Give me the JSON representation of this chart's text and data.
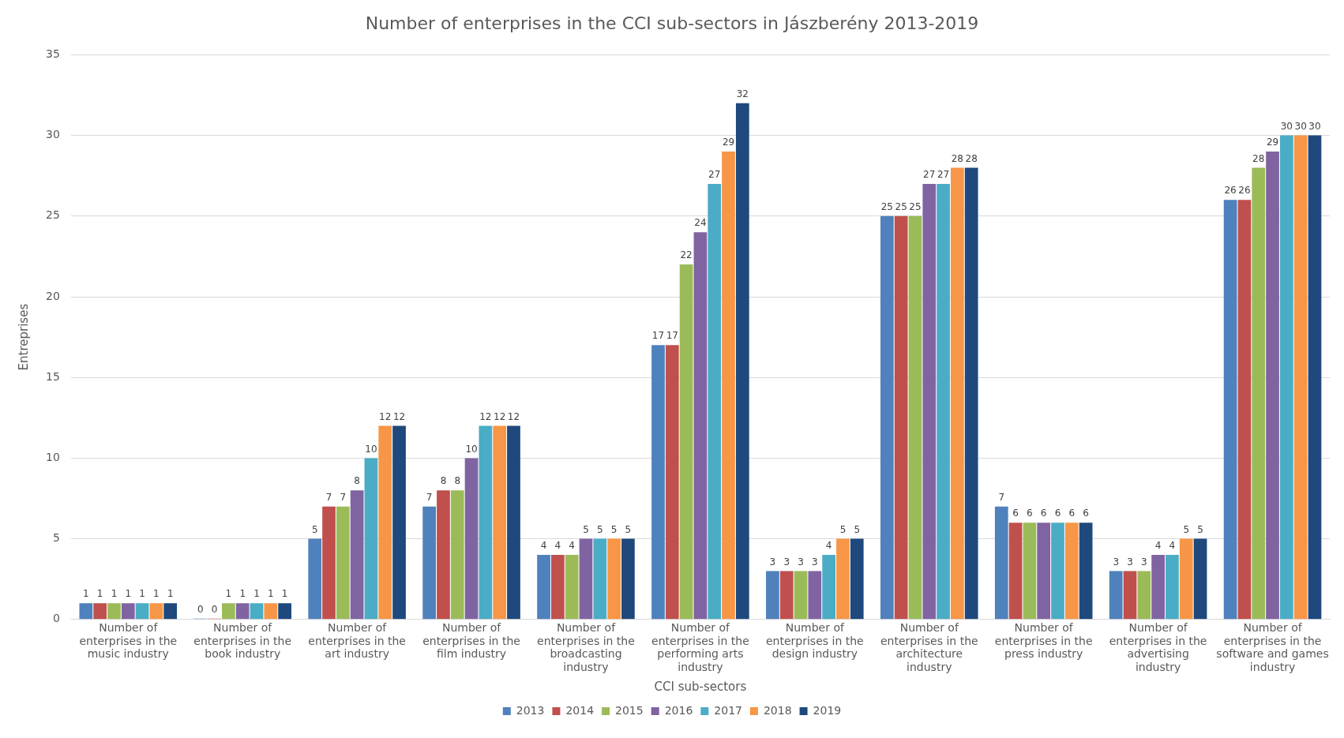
{
  "chart_data": {
    "type": "bar",
    "title": "Number of enterprises in the CCI sub-sectors in Jászberény 2013-2019",
    "xlabel": "CCI sub-sectors",
    "ylabel": "Entreprises",
    "categories": [
      "Number of enterprises in the music industry",
      "Number of enterprises in the book industry",
      "Number of enterprises in the art industry",
      "Number of enterprises in the film industry",
      "Number of enterprises in the broadcasting industry",
      "Number of enterprises in the performing arts industry",
      "Number of enterprises in the design industry",
      "Number of enterprises in the architecture industry",
      "Number of enterprises in the press industry",
      "Number of enterprises in the advertising industry",
      "Number of enterprises in the software and games industry"
    ],
    "series": [
      {
        "name": "2013",
        "color": "#4f81bd",
        "values": [
          1,
          0,
          5,
          7,
          4,
          17,
          3,
          25,
          7,
          3,
          26
        ]
      },
      {
        "name": "2014",
        "color": "#c0504d",
        "values": [
          1,
          0,
          7,
          8,
          4,
          17,
          3,
          25,
          6,
          3,
          26
        ]
      },
      {
        "name": "2015",
        "color": "#9bbb59",
        "values": [
          1,
          1,
          7,
          8,
          4,
          22,
          3,
          25,
          6,
          3,
          28
        ]
      },
      {
        "name": "2016",
        "color": "#8064a2",
        "values": [
          1,
          1,
          8,
          10,
          5,
          24,
          3,
          27,
          6,
          4,
          29
        ]
      },
      {
        "name": "2017",
        "color": "#4bacc6",
        "values": [
          1,
          1,
          10,
          12,
          5,
          27,
          4,
          27,
          6,
          4,
          30
        ]
      },
      {
        "name": "2018",
        "color": "#f79646",
        "values": [
          1,
          1,
          12,
          12,
          5,
          29,
          5,
          28,
          6,
          5,
          30
        ]
      },
      {
        "name": "2019",
        "color": "#1f497d",
        "values": [
          1,
          1,
          12,
          12,
          5,
          32,
          5,
          28,
          6,
          5,
          30
        ]
      }
    ],
    "ylim": [
      0,
      35
    ],
    "yticks": [
      0,
      5,
      10,
      15,
      20,
      25,
      30,
      35
    ],
    "grid": "y",
    "legend": "bottom",
    "data_labels": true
  }
}
